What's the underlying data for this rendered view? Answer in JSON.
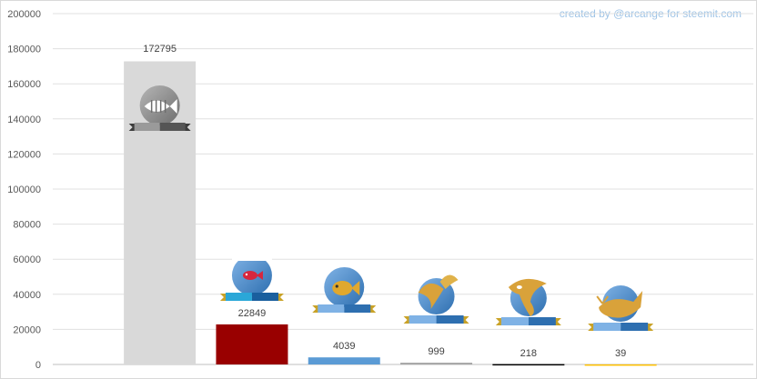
{
  "credit": "created by @arcange for steemit.com",
  "chart_data": {
    "type": "bar",
    "title": "",
    "xlabel": "",
    "ylabel": "",
    "ylim": [
      0,
      200000
    ],
    "yticks": [
      "0",
      "20000",
      "40000",
      "60000",
      "80000",
      "100000",
      "120000",
      "140000",
      "160000",
      "180000",
      "200000"
    ],
    "grid": true,
    "categories": [
      "",
      "",
      "",
      "",
      "",
      ""
    ],
    "icons": [
      "dead-fish-badge-icon",
      "redfish-badge-icon",
      "minnow-badge-icon",
      "dolphin-badge-icon",
      "orca-badge-icon",
      "whale-badge-icon"
    ],
    "values": [
      172795,
      22849,
      4039,
      999,
      218,
      39
    ],
    "labels": [
      "172795",
      "22849",
      "4039",
      "999",
      "218",
      "39"
    ],
    "colors": [
      "#d9d9d9",
      "#990000",
      "#5b9bd5",
      "#a6a6a6",
      "#000000",
      "#ffc000"
    ]
  }
}
